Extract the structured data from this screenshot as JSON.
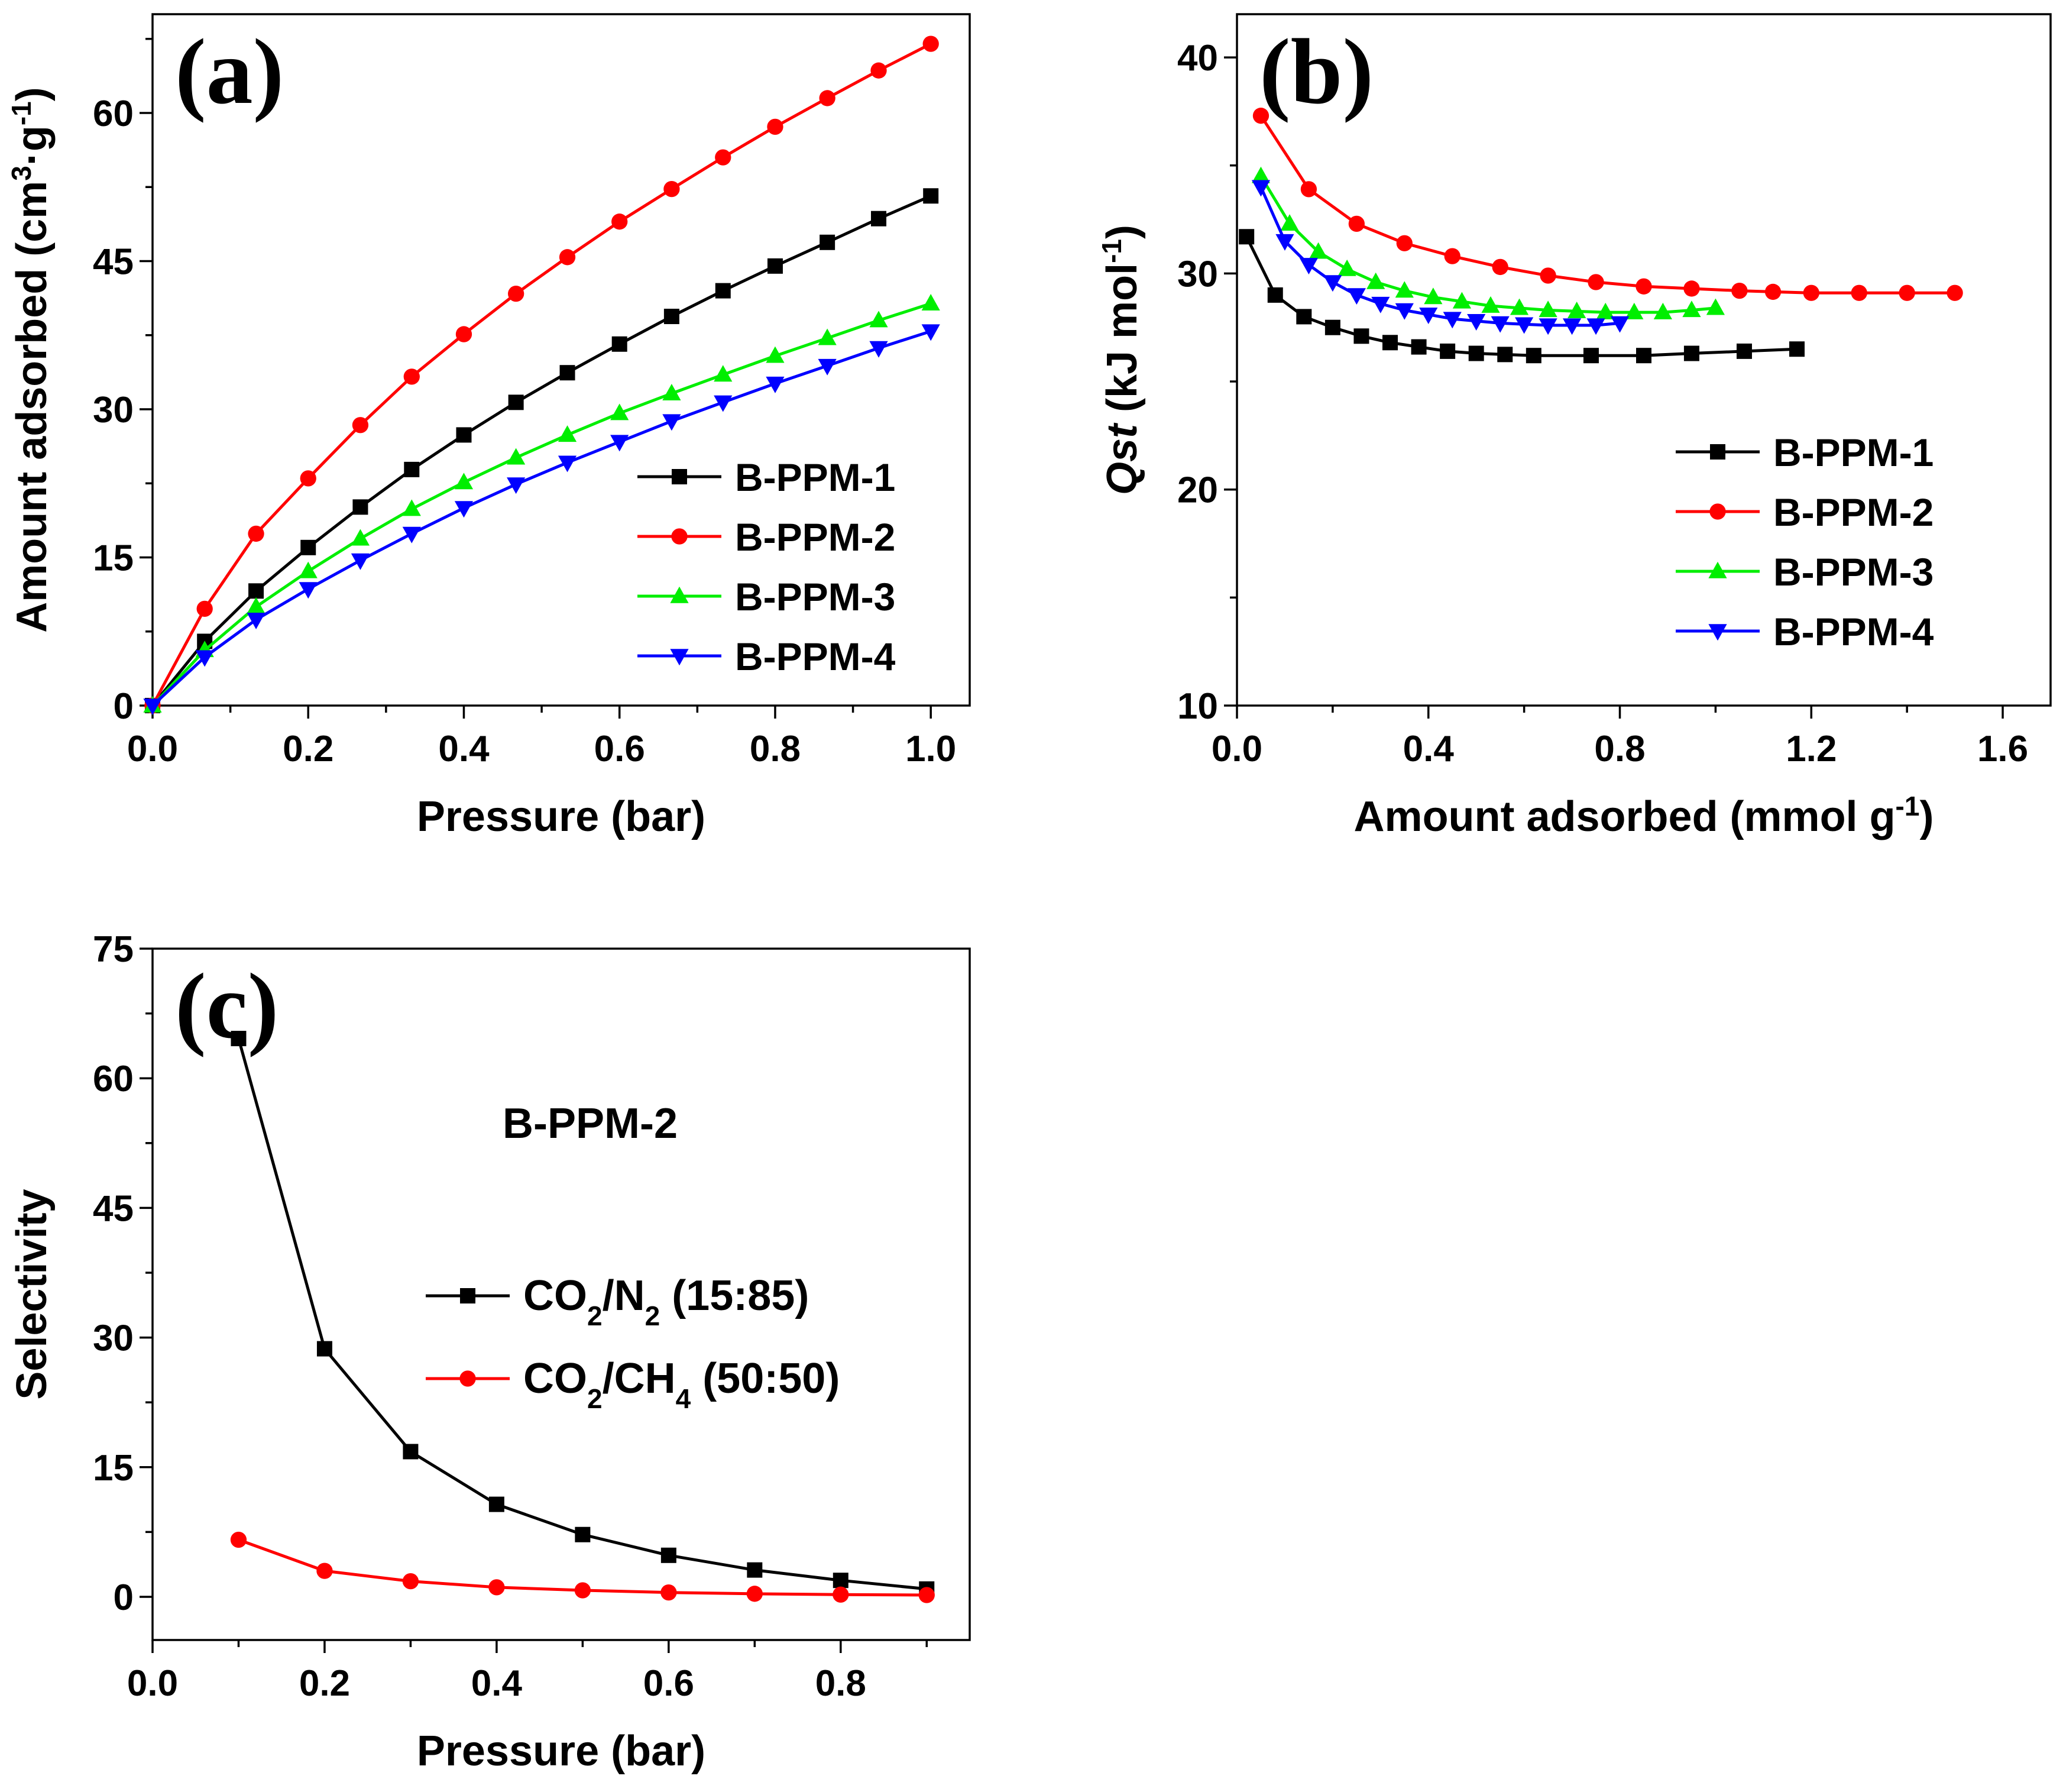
{
  "chart_data": [
    {
      "panel": "(a)",
      "type": "line",
      "title": "",
      "xlabel": "Pressure (bar)",
      "ylabel": {
        "main": "Amount adsorbed (cm",
        "sup1": "3",
        "mid": "·g",
        "sup2": "-1",
        "end": ")"
      },
      "xlim": [
        0,
        1.05
      ],
      "ylim": [
        0,
        70
      ],
      "xticks": [
        0.0,
        0.2,
        0.4,
        0.6,
        0.8,
        1.0
      ],
      "yticks": [
        0,
        15,
        30,
        45,
        60
      ],
      "xtick_labels": [
        "0.0",
        "0.2",
        "0.4",
        "0.6",
        "0.8",
        "1.0"
      ],
      "ytick_labels": [
        "0",
        "15",
        "30",
        "45",
        "60"
      ],
      "legend": "bottom-right",
      "x": [
        0,
        0.067,
        0.133,
        0.2,
        0.267,
        0.333,
        0.4,
        0.467,
        0.533,
        0.6,
        0.667,
        0.733,
        0.8,
        0.867,
        0.933,
        1.0
      ],
      "series": [
        {
          "name": "B-PPM-1",
          "color": "#000000",
          "marker": "square",
          "values": [
            0,
            6.5,
            11.6,
            16.0,
            20.1,
            23.9,
            27.4,
            30.7,
            33.7,
            36.6,
            39.4,
            42.0,
            44.5,
            46.9,
            49.3,
            51.6
          ]
        },
        {
          "name": "B-PPM-2",
          "color": "#ff0000",
          "marker": "circle",
          "values": [
            0,
            9.8,
            17.4,
            23.0,
            28.4,
            33.3,
            37.6,
            41.7,
            45.4,
            49.0,
            52.3,
            55.5,
            58.6,
            61.5,
            64.3,
            67.0
          ]
        },
        {
          "name": "B-PPM-3",
          "color": "#00ee00",
          "marker": "triangle-up",
          "values": [
            0,
            5.6,
            10.0,
            13.6,
            16.9,
            19.9,
            22.6,
            25.1,
            27.4,
            29.6,
            31.6,
            33.5,
            35.4,
            37.2,
            39.0,
            40.7
          ]
        },
        {
          "name": "B-PPM-4",
          "color": "#0000ff",
          "marker": "triangle-down",
          "values": [
            0,
            4.9,
            8.7,
            11.8,
            14.7,
            17.4,
            20.0,
            22.4,
            24.6,
            26.7,
            28.8,
            30.7,
            32.6,
            34.4,
            36.2,
            37.9
          ]
        }
      ]
    },
    {
      "panel": "(b)",
      "type": "line",
      "title": "",
      "xlabel": {
        "main": "Amount adsorbed (mmol g",
        "sup": "-1",
        "end": ")"
      },
      "ylabel": {
        "italic": "Qst",
        "main": " (kJ mol",
        "sup": "-1",
        "end": ")"
      },
      "xlim": [
        0,
        1.7
      ],
      "ylim": [
        10,
        42
      ],
      "xticks": [
        0.0,
        0.4,
        0.8,
        1.2,
        1.6
      ],
      "yticks": [
        10,
        20,
        30,
        40
      ],
      "xtick_labels": [
        "0.0",
        "0.4",
        "0.8",
        "1.2",
        "1.6"
      ],
      "ytick_labels": [
        "10",
        "20",
        "30",
        "40"
      ],
      "legend": "center-right",
      "series": [
        {
          "name": "B-PPM-1",
          "color": "#000000",
          "marker": "square",
          "x": [
            0.02,
            0.08,
            0.14,
            0.2,
            0.26,
            0.32,
            0.38,
            0.44,
            0.5,
            0.56,
            0.62,
            0.74,
            0.85,
            0.95,
            1.06,
            1.17
          ],
          "values": [
            31.7,
            29.0,
            28.0,
            27.5,
            27.1,
            26.8,
            26.6,
            26.4,
            26.3,
            26.25,
            26.2,
            26.2,
            26.2,
            26.3,
            26.4,
            26.5
          ]
        },
        {
          "name": "B-PPM-2",
          "color": "#ff0000",
          "marker": "circle",
          "x": [
            0.05,
            0.15,
            0.25,
            0.35,
            0.45,
            0.55,
            0.65,
            0.75,
            0.85,
            0.95,
            1.05,
            1.12,
            1.2,
            1.3,
            1.4,
            1.5
          ],
          "values": [
            37.3,
            33.9,
            32.3,
            31.4,
            30.8,
            30.3,
            29.9,
            29.6,
            29.4,
            29.3,
            29.2,
            29.15,
            29.1,
            29.1,
            29.1,
            29.1
          ]
        },
        {
          "name": "B-PPM-3",
          "color": "#00ee00",
          "marker": "triangle-up",
          "x": [
            0.05,
            0.11,
            0.17,
            0.23,
            0.29,
            0.35,
            0.41,
            0.47,
            0.53,
            0.59,
            0.65,
            0.71,
            0.77,
            0.83,
            0.89,
            0.95,
            1.0
          ],
          "values": [
            34.5,
            32.3,
            31.0,
            30.2,
            29.6,
            29.2,
            28.9,
            28.7,
            28.5,
            28.4,
            28.3,
            28.25,
            28.2,
            28.2,
            28.2,
            28.3,
            28.4
          ]
        },
        {
          "name": "B-PPM-4",
          "color": "#0000ff",
          "marker": "triangle-down",
          "x": [
            0.05,
            0.1,
            0.15,
            0.2,
            0.25,
            0.3,
            0.35,
            0.4,
            0.45,
            0.5,
            0.55,
            0.6,
            0.65,
            0.7,
            0.75,
            0.8
          ],
          "values": [
            34.0,
            31.5,
            30.4,
            29.6,
            29.0,
            28.6,
            28.3,
            28.1,
            27.9,
            27.8,
            27.7,
            27.65,
            27.6,
            27.6,
            27.6,
            27.7
          ]
        }
      ]
    },
    {
      "panel": "(c)",
      "type": "line",
      "title": "",
      "annotation": "B-PPM-2",
      "xlabel": "Pressure (bar)",
      "ylabel": "Selectivity",
      "xlim": [
        0,
        0.95
      ],
      "ylim": [
        -5,
        75
      ],
      "xticks": [
        0.0,
        0.2,
        0.4,
        0.6,
        0.8
      ],
      "yticks": [
        0,
        15,
        30,
        45,
        60,
        75
      ],
      "xtick_labels": [
        "0.0",
        "0.2",
        "0.4",
        "0.6",
        "0.8"
      ],
      "ytick_labels": [
        "0",
        "15",
        "30",
        "45",
        "60",
        "75"
      ],
      "legend": "center-right",
      "x": [
        0.1,
        0.2,
        0.3,
        0.4,
        0.5,
        0.6,
        0.7,
        0.8,
        0.9
      ],
      "series": [
        {
          "name": "CO2/N2 (15:85)",
          "color": "#000000",
          "marker": "square",
          "label_parts": [
            "CO",
            "2",
            "/N",
            "2",
            " (15:85)"
          ],
          "values": [
            64.6,
            28.7,
            16.8,
            10.7,
            7.2,
            4.8,
            3.1,
            1.9,
            0.9
          ]
        },
        {
          "name": "CO2/CH4 (50:50)",
          "color": "#ff0000",
          "marker": "circle",
          "label_parts": [
            "CO",
            "2",
            "/CH",
            "4",
            " (50:50)"
          ],
          "values": [
            6.6,
            3.0,
            1.8,
            1.1,
            0.75,
            0.5,
            0.35,
            0.25,
            0.2
          ]
        }
      ]
    }
  ]
}
